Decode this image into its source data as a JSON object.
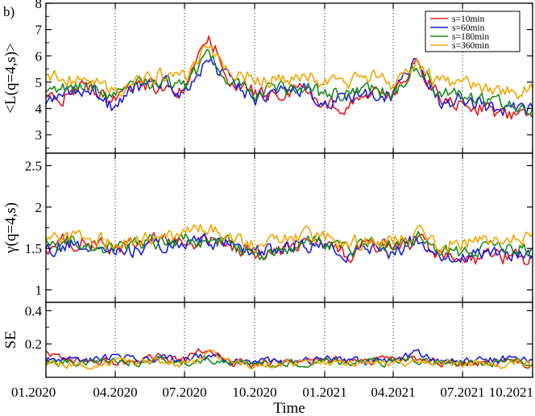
{
  "panel_label": "b)",
  "colors": {
    "s10": "#e31a1c",
    "s60": "#1f1fe0",
    "s180": "#1a8c1a",
    "s360": "#f0a500",
    "frame": "#000000",
    "vline": "#555555"
  },
  "chart_data": {
    "type": "line",
    "x_tick_labels": [
      "01.2020",
      "04.2020",
      "07.2020",
      "10.2020",
      "01.2021",
      "04.2021",
      "07.2021",
      "10.2021"
    ],
    "x_ticks": [
      "2020-01-01",
      "2020-04-01",
      "2020-07-01",
      "2020-10-01",
      "2021-01-01",
      "2021-04-01",
      "2021-07-01",
      "2021-10-01"
    ],
    "xlabel": "Time",
    "x_range": [
      "2020-01-01",
      "2021-10-01"
    ],
    "vertical_lines": [
      "2020-04-01",
      "2020-07-01",
      "2020-10-01",
      "2021-01-01",
      "2021-04-01",
      "2021-07-01"
    ],
    "legend": {
      "position": "top-right",
      "entries": [
        "s=10min",
        "s=60min",
        "s=180min",
        "s=360min"
      ]
    },
    "x": [
      "2020-01-01",
      "2020-02-01",
      "2020-03-01",
      "2020-04-01",
      "2020-05-01",
      "2020-06-01",
      "2020-07-01",
      "2020-08-01",
      "2020-09-01",
      "2020-10-01",
      "2020-11-01",
      "2020-12-01",
      "2021-01-01",
      "2021-02-01",
      "2021-03-01",
      "2021-04-01",
      "2021-05-01",
      "2021-06-01",
      "2021-07-01",
      "2021-08-01",
      "2021-09-01",
      "2021-10-01"
    ],
    "panels": [
      {
        "ylabel": "<L(q=4,s)>",
        "ylim": [
          2.3,
          8.0
        ],
        "yticks": [
          3,
          4,
          5,
          6,
          7,
          8
        ],
        "series": [
          {
            "name": "s=10min",
            "values": [
              4.2,
              4.6,
              4.8,
              4.3,
              4.9,
              4.7,
              4.6,
              6.8,
              5.0,
              4.6,
              4.5,
              4.7,
              4.2,
              4.1,
              4.5,
              4.5,
              5.8,
              4.4,
              4.1,
              4.0,
              3.7,
              3.6
            ]
          },
          {
            "name": "s=60min",
            "values": [
              4.3,
              4.6,
              4.7,
              4.0,
              4.8,
              5.1,
              4.5,
              5.9,
              4.9,
              4.4,
              4.5,
              4.8,
              4.3,
              4.4,
              4.6,
              4.5,
              6.1,
              4.3,
              4.3,
              4.1,
              3.9,
              4.0
            ]
          },
          {
            "name": "s=180min",
            "values": [
              4.7,
              4.8,
              4.9,
              4.4,
              4.9,
              5.0,
              4.8,
              6.0,
              5.0,
              4.6,
              4.7,
              4.9,
              4.5,
              4.6,
              4.8,
              4.5,
              5.7,
              4.6,
              4.5,
              4.3,
              4.2,
              4.1
            ]
          },
          {
            "name": "s=360min",
            "values": [
              5.3,
              5.1,
              5.0,
              4.6,
              5.2,
              5.3,
              5.2,
              6.4,
              5.4,
              5.2,
              5.1,
              5.3,
              5.0,
              5.0,
              5.2,
              4.9,
              5.9,
              4.9,
              4.9,
              4.7,
              4.6,
              4.7
            ]
          }
        ]
      },
      {
        "ylabel": "γ(q=4,s)",
        "ylim": [
          0.85,
          2.65
        ],
        "yticks": [
          1,
          1.5,
          2,
          2.5
        ],
        "series": [
          {
            "name": "s=10min",
            "values": [
              1.5,
              1.6,
              1.55,
              1.5,
              1.55,
              1.6,
              1.55,
              1.6,
              1.5,
              1.45,
              1.45,
              1.55,
              1.55,
              1.4,
              1.55,
              1.5,
              1.6,
              1.4,
              1.3,
              1.4,
              1.4,
              1.35
            ]
          },
          {
            "name": "s=60min",
            "values": [
              1.45,
              1.55,
              1.55,
              1.45,
              1.5,
              1.55,
              1.55,
              1.6,
              1.55,
              1.45,
              1.5,
              1.55,
              1.55,
              1.45,
              1.5,
              1.45,
              1.6,
              1.4,
              1.4,
              1.45,
              1.45,
              1.4
            ]
          },
          {
            "name": "s=180min",
            "values": [
              1.55,
              1.6,
              1.55,
              1.5,
              1.55,
              1.6,
              1.6,
              1.6,
              1.55,
              1.4,
              1.5,
              1.55,
              1.6,
              1.45,
              1.55,
              1.5,
              1.65,
              1.45,
              1.45,
              1.5,
              1.5,
              1.5
            ]
          },
          {
            "name": "s=360min",
            "values": [
              1.6,
              1.65,
              1.6,
              1.6,
              1.6,
              1.65,
              1.65,
              1.75,
              1.6,
              1.55,
              1.55,
              1.65,
              1.65,
              1.55,
              1.6,
              1.6,
              1.7,
              1.55,
              1.55,
              1.6,
              1.6,
              1.6
            ]
          }
        ]
      },
      {
        "ylabel": "SE",
        "ylim": [
          0.0,
          0.45
        ],
        "yticks": [
          0.2,
          0.4
        ],
        "series": [
          {
            "name": "s=10min",
            "values": [
              0.14,
              0.09,
              0.1,
              0.09,
              0.1,
              0.12,
              0.1,
              0.18,
              0.09,
              0.08,
              0.09,
              0.1,
              0.1,
              0.1,
              0.09,
              0.11,
              0.12,
              0.09,
              0.08,
              0.09,
              0.09,
              0.08
            ]
          },
          {
            "name": "s=60min",
            "values": [
              0.11,
              0.11,
              0.1,
              0.13,
              0.1,
              0.11,
              0.1,
              0.13,
              0.09,
              0.09,
              0.09,
              0.1,
              0.11,
              0.1,
              0.1,
              0.1,
              0.15,
              0.1,
              0.1,
              0.1,
              0.11,
              0.11
            ]
          },
          {
            "name": "s=180min",
            "values": [
              0.09,
              0.09,
              0.09,
              0.1,
              0.09,
              0.1,
              0.09,
              0.11,
              0.09,
              0.08,
              0.08,
              0.09,
              0.1,
              0.09,
              0.09,
              0.09,
              0.11,
              0.09,
              0.09,
              0.09,
              0.09,
              0.09
            ]
          },
          {
            "name": "s=360min",
            "values": [
              0.08,
              0.08,
              0.08,
              0.09,
              0.08,
              0.1,
              0.08,
              0.14,
              0.09,
              0.07,
              0.08,
              0.09,
              0.09,
              0.08,
              0.09,
              0.08,
              0.1,
              0.08,
              0.08,
              0.08,
              0.08,
              0.08
            ]
          }
        ]
      }
    ]
  }
}
